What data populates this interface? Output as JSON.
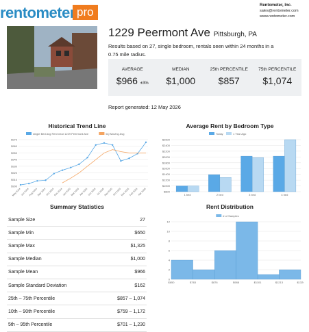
{
  "header": {
    "logo": "rentometer",
    "badge": "pro",
    "company": "Rentometer, Inc.",
    "email": "sales@rentometer.com",
    "website": "www.rentometer.com"
  },
  "property": {
    "address": "1229 Peermont Ave",
    "city": "Pittsburgh, PA",
    "description": "Results based on 27, single bedroom, rentals seen within 24 months in a 0.75 mile radius."
  },
  "stats": [
    {
      "label": "AVERAGE",
      "value": "$966",
      "note": "±3%"
    },
    {
      "label": "MEDIAN",
      "value": "$1,000"
    },
    {
      "label": "25th PERCENTILE",
      "value": "$857"
    },
    {
      "label": "75th PERCENTILE",
      "value": "$1,074"
    }
  ],
  "report_date": "Report generated: 12 May 2026",
  "summary": {
    "title": "Summary Statistics",
    "rows": [
      [
        "Sample Size",
        "27"
      ],
      [
        "Sample Min",
        "$650"
      ],
      [
        "Sample Max",
        "$1,325"
      ],
      [
        "Sample Median",
        "$1,000"
      ],
      [
        "Sample Mean",
        "$966"
      ],
      [
        "Sample Standard Deviation",
        "$162"
      ],
      [
        "25th – 75th Percentile",
        "$857 – 1,074"
      ],
      [
        "10th – 90th Percentile",
        "$759 – 1,172"
      ],
      [
        "5th – 95th Percentile",
        "$701 – 1,230"
      ]
    ]
  },
  "chart_data": [
    {
      "type": "line",
      "title": "Historical Trend Line",
      "categories": [
        "May 2024",
        "Jun 2024",
        "Aug 2024",
        "Sep 2024",
        "Oct 2024",
        "Dec 2024",
        "Jan 2025",
        "Mar 2025",
        "Apr 2025",
        "Jun 2025",
        "Jul 2025",
        "Sep 2025",
        "Oct 2025",
        "Dec 2025",
        "Feb 2026",
        "Apr 2026"
      ],
      "series": [
        {
          "name": "single Bed Avg Rent near 1229 Peermont Ave",
          "color": "#5aa9e6",
          "values": [
            902,
            904,
            908,
            909,
            919,
            924,
            928,
            933,
            943,
            962,
            965,
            962,
            938,
            942,
            949,
            966
          ]
        },
        {
          "name": "6Q Moving Avg",
          "color": "#f4a460",
          "values": [
            null,
            null,
            null,
            null,
            null,
            905,
            912,
            920,
            930,
            940,
            950,
            955,
            952,
            950,
            950,
            950
          ]
        }
      ],
      "ylim": [
        900,
        970
      ],
      "yticks": [
        {
          "value": 900,
          "label": "$900"
        },
        {
          "value": 910,
          "label": "$910"
        },
        {
          "value": 920,
          "label": "$920"
        },
        {
          "value": 930,
          "label": "$930"
        },
        {
          "value": 940,
          "label": "$940"
        },
        {
          "value": 950,
          "label": "$950"
        },
        {
          "value": 960,
          "label": "$960"
        },
        {
          "value": 970,
          "label": "$970"
        }
      ],
      "grid": true
    },
    {
      "type": "bar",
      "title": "Average Rent by Bedroom Type",
      "categories": [
        "1 bed",
        "2 bed",
        "3 bed",
        "4 bed"
      ],
      "series": [
        {
          "name": "Today",
          "color": "#5aa9e6",
          "values": [
            1000,
            1390,
            2030,
            2030
          ]
        },
        {
          "name": "1 Year Ago",
          "color": "#b8d9f2",
          "values": [
            1000,
            1290,
            1980,
            2600
          ]
        }
      ],
      "ylim": [
        800,
        2600
      ],
      "yticks": [
        {
          "value": 800,
          "label": "$800"
        },
        {
          "value": 1000,
          "label": "$1000"
        },
        {
          "value": 1200,
          "label": "$1200"
        },
        {
          "value": 1400,
          "label": "$1400"
        },
        {
          "value": 1600,
          "label": "$1600"
        },
        {
          "value": 1800,
          "label": "$1800"
        },
        {
          "value": 2000,
          "label": "$2000"
        },
        {
          "value": 2200,
          "label": "$2200"
        },
        {
          "value": 2400,
          "label": "$2400"
        },
        {
          "value": 2600,
          "label": "$2600"
        }
      ],
      "grid": true
    },
    {
      "type": "histogram",
      "title": "Rent Distribution",
      "bins": [
        650,
        763,
        876,
        988,
        1101,
        1213,
        1326
      ],
      "series": [
        {
          "name": "# of Samples",
          "color": "#7bb8e8",
          "values": [
            4,
            2,
            6,
            12,
            1,
            2
          ]
        }
      ],
      "xlim": [
        650,
        1326
      ],
      "xticks": [
        {
          "value": 650,
          "label": "$650"
        },
        {
          "value": 763,
          "label": "$763"
        },
        {
          "value": 876,
          "label": "$876"
        },
        {
          "value": 988,
          "label": "$988"
        },
        {
          "value": 1101,
          "label": "$1101"
        },
        {
          "value": 1213,
          "label": "$1213"
        },
        {
          "value": 1326,
          "label": "$1326"
        }
      ],
      "ylim": [
        0,
        12
      ],
      "yticks": [
        0,
        2,
        4,
        6,
        8,
        10,
        12
      ],
      "grid": true
    }
  ]
}
